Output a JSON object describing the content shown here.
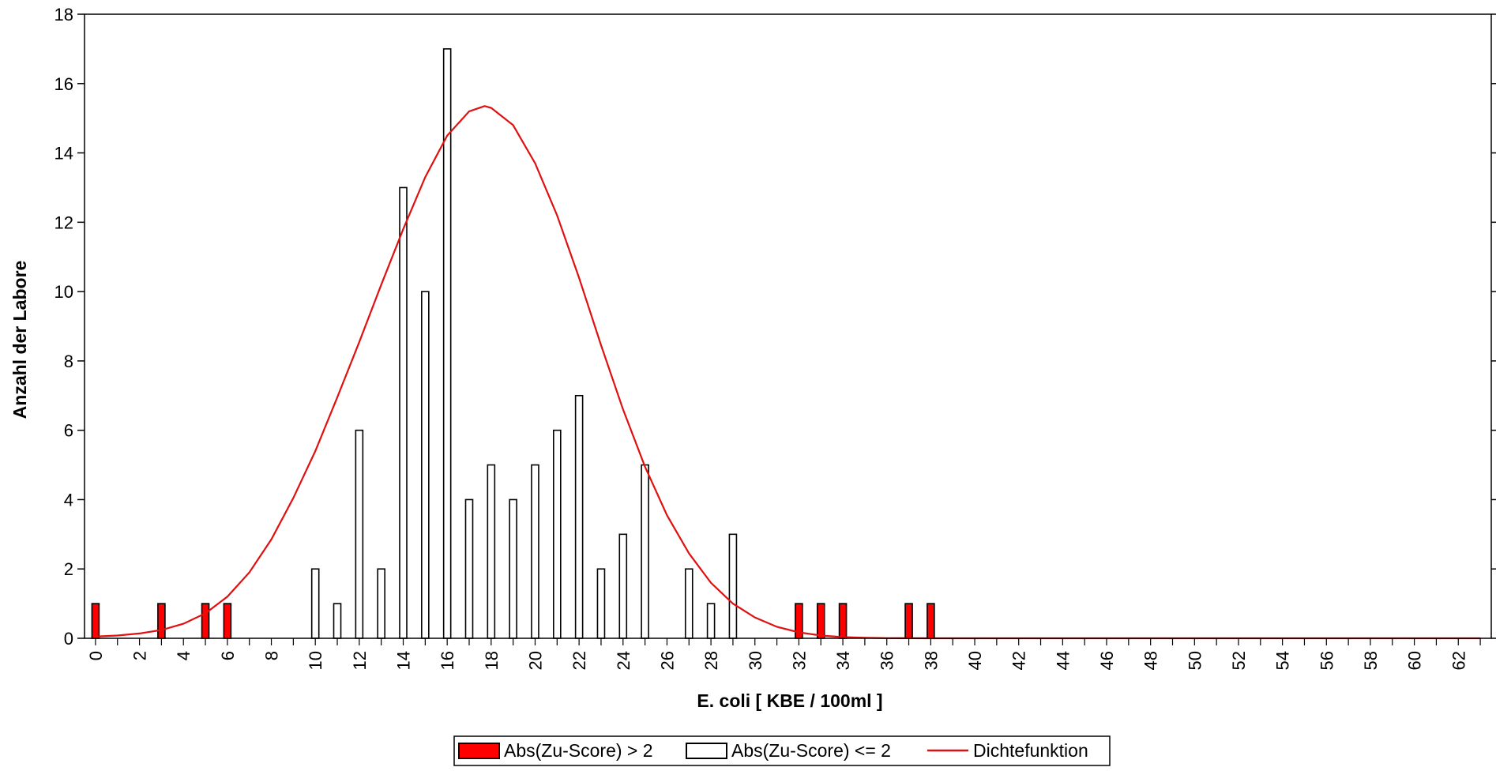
{
  "chart_data": {
    "type": "bar",
    "xlabel": "E. coli [ KBE / 100ml ]",
    "ylabel": "Anzahl der Labore",
    "xlim": [
      0,
      63
    ],
    "ylim": [
      0,
      18
    ],
    "y_ticks": [
      0,
      2,
      4,
      6,
      8,
      10,
      12,
      14,
      16,
      18
    ],
    "x_ticks": [
      0,
      2,
      4,
      6,
      8,
      10,
      12,
      14,
      16,
      18,
      20,
      22,
      24,
      26,
      28,
      30,
      32,
      34,
      36,
      38,
      40,
      42,
      44,
      46,
      48,
      50,
      52,
      54,
      56,
      58,
      60,
      62
    ],
    "legend_position": "bottom-center",
    "series": [
      {
        "name": "Abs(Zu-Score) > 2",
        "kind": "bar",
        "color": "#ff0000",
        "points": [
          [
            0,
            1
          ],
          [
            3,
            1
          ],
          [
            5,
            1
          ],
          [
            6,
            1
          ],
          [
            32,
            1
          ],
          [
            33,
            1
          ],
          [
            34,
            1
          ],
          [
            37,
            1
          ],
          [
            38,
            1
          ]
        ]
      },
      {
        "name": "Abs(Zu-Score) <= 2",
        "kind": "bar",
        "color": "#ffffff",
        "points": [
          [
            10,
            2
          ],
          [
            11,
            1
          ],
          [
            12,
            6
          ],
          [
            13,
            2
          ],
          [
            14,
            13
          ],
          [
            15,
            10
          ],
          [
            16,
            17
          ],
          [
            17,
            4
          ],
          [
            18,
            5
          ],
          [
            19,
            4
          ],
          [
            20,
            5
          ],
          [
            21,
            6
          ],
          [
            22,
            7
          ],
          [
            23,
            2
          ],
          [
            24,
            3
          ],
          [
            25,
            5
          ],
          [
            27,
            2
          ],
          [
            28,
            1
          ],
          [
            29,
            3
          ]
        ]
      },
      {
        "name": "Dichtefunktion",
        "kind": "line",
        "color": "#e01010",
        "points": [
          [
            0,
            0.05
          ],
          [
            1,
            0.08
          ],
          [
            2,
            0.14
          ],
          [
            3,
            0.24
          ],
          [
            4,
            0.42
          ],
          [
            5,
            0.72
          ],
          [
            6,
            1.2
          ],
          [
            7,
            1.9
          ],
          [
            8,
            2.85
          ],
          [
            9,
            4.05
          ],
          [
            10,
            5.4
          ],
          [
            11,
            6.95
          ],
          [
            12,
            8.55
          ],
          [
            13,
            10.2
          ],
          [
            14,
            11.8
          ],
          [
            15,
            13.3
          ],
          [
            16,
            14.5
          ],
          [
            17,
            15.2
          ],
          [
            17.7,
            15.35
          ],
          [
            18,
            15.3
          ],
          [
            19,
            14.8
          ],
          [
            20,
            13.7
          ],
          [
            21,
            12.2
          ],
          [
            22,
            10.4
          ],
          [
            23,
            8.45
          ],
          [
            24,
            6.6
          ],
          [
            25,
            4.95
          ],
          [
            26,
            3.55
          ],
          [
            27,
            2.45
          ],
          [
            28,
            1.6
          ],
          [
            29,
            1.0
          ],
          [
            30,
            0.6
          ],
          [
            31,
            0.33
          ],
          [
            32,
            0.17
          ],
          [
            33,
            0.08
          ],
          [
            34,
            0.035
          ],
          [
            35,
            0.015
          ],
          [
            36,
            0.005
          ],
          [
            38,
            0.0
          ],
          [
            63,
            0.0
          ]
        ]
      }
    ]
  }
}
